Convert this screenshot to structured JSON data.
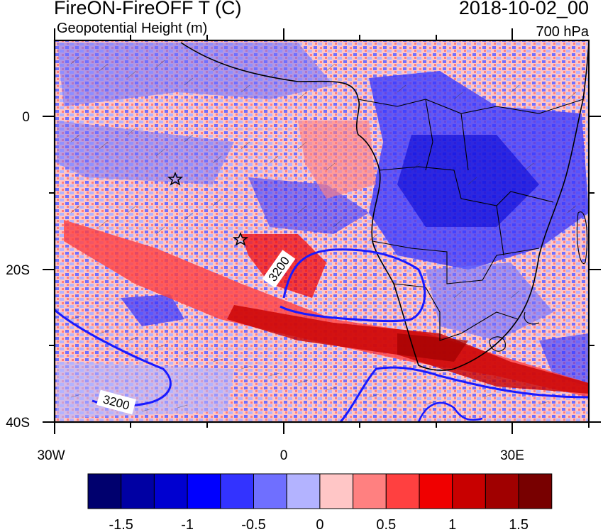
{
  "header": {
    "title_left": "FireON-FireOFF T (C)",
    "subtitle_left": "Geopotential Height (m)",
    "title_right": "2018-10-02_00",
    "subtitle_right": "700 hPa"
  },
  "map": {
    "lon_range": [
      -30,
      40
    ],
    "lat_range": [
      -40,
      10
    ],
    "x_tick_labels": [
      "30W",
      "0",
      "30E"
    ],
    "y_tick_labels": [
      "0",
      "20S",
      "40S"
    ],
    "contour_labels": [
      "3200",
      "3200"
    ],
    "markers": [
      "star",
      "star"
    ],
    "contour_color": "#1a1aff"
  },
  "colorbar": {
    "colors": [
      "#00006e",
      "#0000a3",
      "#0000d0",
      "#0000ff",
      "#3333ff",
      "#6f6fff",
      "#b3b3ff",
      "#ffc6c6",
      "#ff8080",
      "#ff4040",
      "#f00000",
      "#c80000",
      "#a00000",
      "#780000"
    ],
    "tick_labels": [
      "-1.5",
      "-1",
      "-0.5",
      "0",
      "0.5",
      "1",
      "1.5"
    ]
  }
}
